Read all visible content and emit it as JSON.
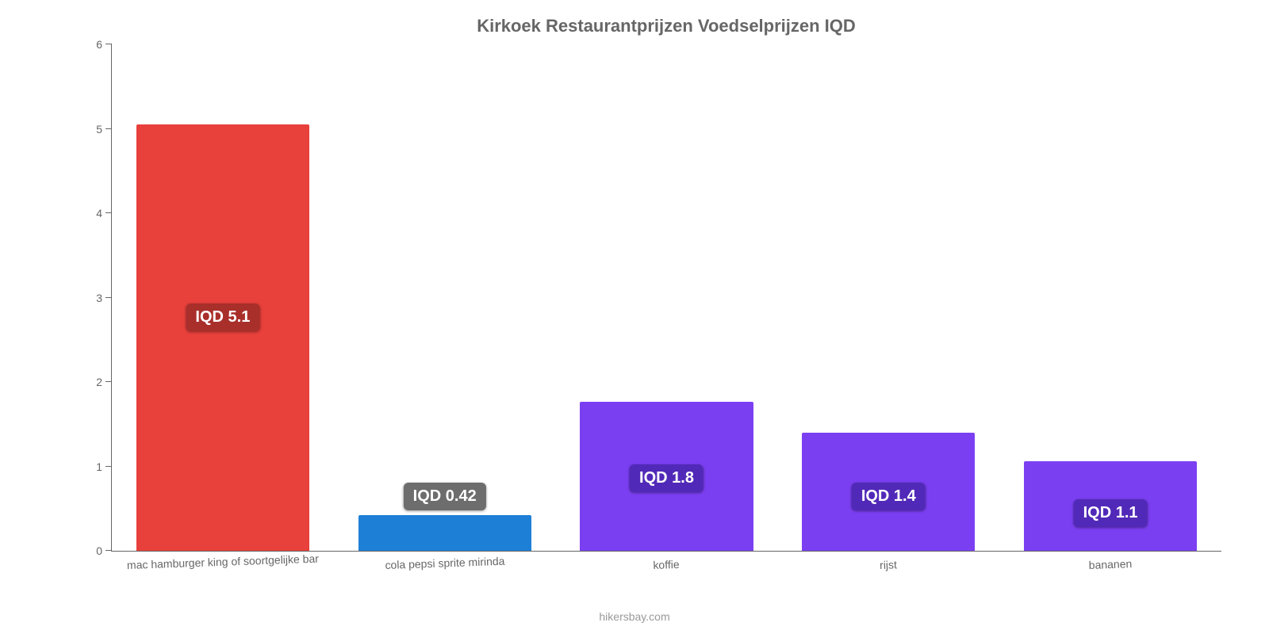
{
  "chart": {
    "type": "bar",
    "title": "Kirkoek Restaurantprijzen Voedselprijzen IQD",
    "title_fontsize": 22,
    "title_color": "#666666",
    "background_color": "#ffffff",
    "axis_color": "#666666",
    "ylim_min": 0,
    "ylim_max": 6,
    "ytick_step": 1,
    "yticks": [
      "0",
      "1",
      "2",
      "3",
      "4",
      "5",
      "6"
    ],
    "label_fontsize": 14,
    "label_color": "#666666",
    "bar_width_pct": 78,
    "categories": [
      "mac hamburger king of soortgelijke bar",
      "cola pepsi sprite mirinda",
      "koffie",
      "rijst",
      "bananen"
    ],
    "values": [
      5.05,
      0.42,
      1.77,
      1.4,
      1.06
    ],
    "value_labels": [
      "IQD 5.1",
      "IQD 0.42",
      "IQD 1.8",
      "IQD 1.4",
      "IQD 1.1"
    ],
    "bar_colors": [
      "#e8403b",
      "#1e7fd6",
      "#7b3ff2",
      "#7b3ff2",
      "#7b3ff2"
    ],
    "badge_bg_colors": [
      "#a92f2b",
      "#6d6d6d",
      "#5129b8",
      "#5129b8",
      "#5129b8"
    ],
    "badge_text_color": "#ffffff",
    "badge_fontsize": 20,
    "credit": "hikersbay.com",
    "credit_color": "#999999"
  }
}
